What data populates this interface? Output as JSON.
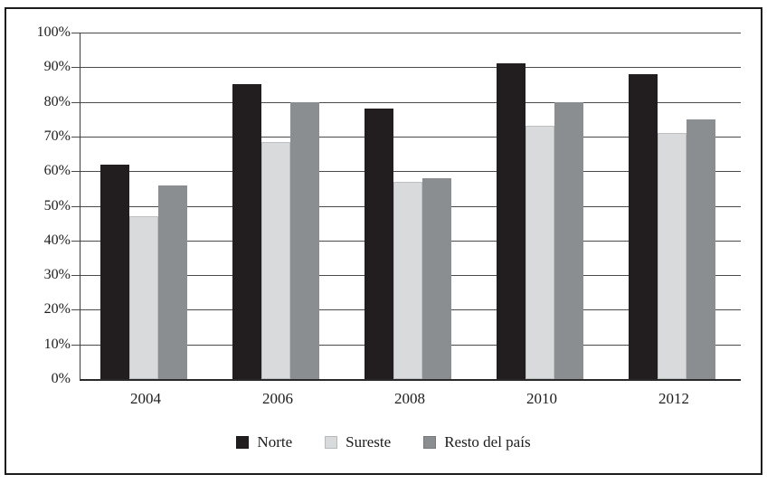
{
  "figure": {
    "background_color": "#ffffff",
    "frame_color": "#1c1c1c",
    "axis_color": "#3d3d3d",
    "gridline_color": "#4a4a4a",
    "text_color": "#1d1d1d"
  },
  "chart_data": {
    "type": "bar",
    "title": "",
    "xlabel": "",
    "ylabel": "",
    "categories": [
      "2004",
      "2006",
      "2008",
      "2010",
      "2012"
    ],
    "series": [
      {
        "name": "Norte",
        "color": "#221e1f",
        "values": [
          62,
          85,
          78,
          91,
          88
        ]
      },
      {
        "name": "Sureste",
        "color": "#d8dadb",
        "values": [
          47,
          68.5,
          57,
          73,
          71
        ]
      },
      {
        "name": "Resto del país",
        "color": "#8b8e90",
        "values": [
          56,
          80,
          58,
          80,
          75
        ]
      }
    ],
    "ylim": [
      0,
      100
    ],
    "ytick_step": 10,
    "ytick_labels": [
      "0%",
      "10%",
      "20%",
      "30%",
      "40%",
      "50%",
      "60%",
      "70%",
      "80%",
      "90%",
      "100%"
    ],
    "grid": true,
    "legend_position": "bottom",
    "legend_labels": [
      "Norte",
      "Sureste",
      "Resto del país"
    ]
  }
}
